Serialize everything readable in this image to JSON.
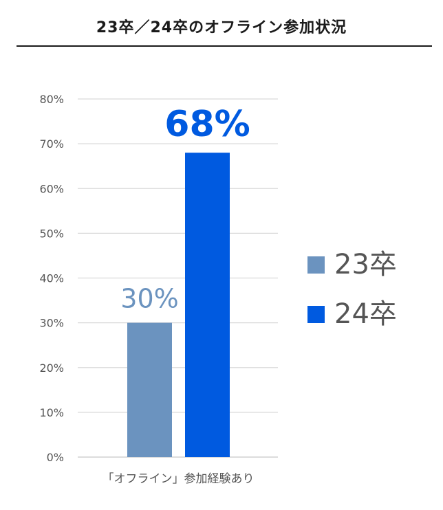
{
  "chart_data": {
    "type": "bar",
    "title": "23卒／24卒のオフライン参加状況",
    "categories": [
      "「オフライン」参加経験あり"
    ],
    "series": [
      {
        "name": "23卒",
        "values": [
          30
        ],
        "color": "#6b93bf",
        "data_label": "30%"
      },
      {
        "name": "24卒",
        "values": [
          68
        ],
        "color": "#005ae0",
        "data_label": "68%"
      }
    ],
    "ylim": [
      0,
      80
    ],
    "yticks": [
      "0%",
      "10%",
      "20%",
      "30%",
      "40%",
      "50%",
      "60%",
      "70%",
      "80%"
    ],
    "grid": true,
    "legend_position": "right"
  }
}
